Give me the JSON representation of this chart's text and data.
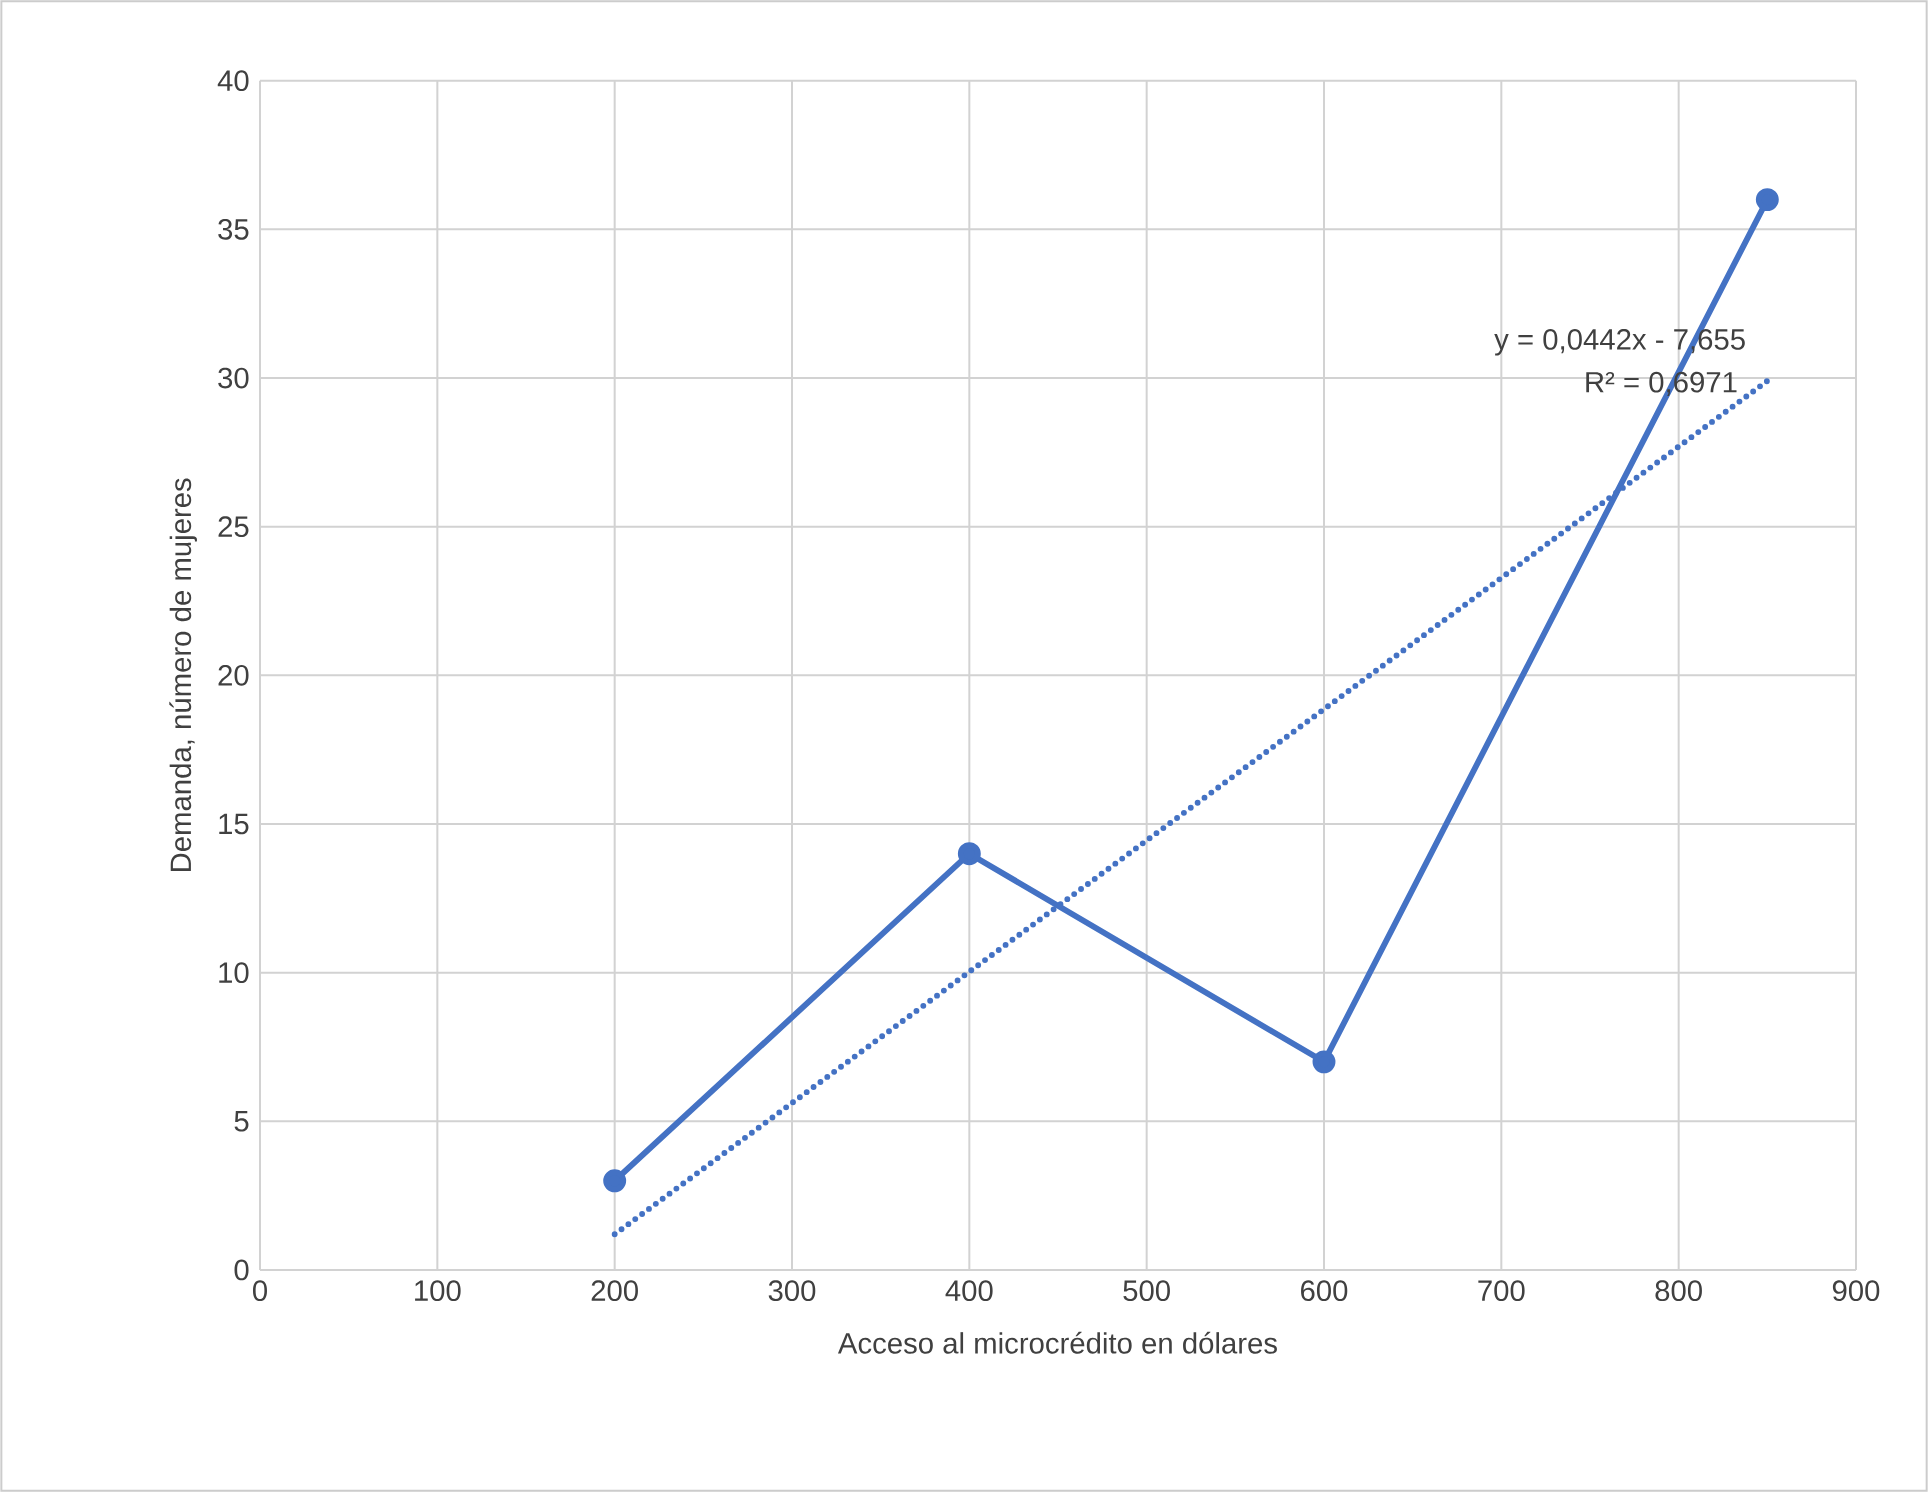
{
  "chart_data": {
    "type": "line",
    "xlabel": "Acceso al microcrédito en dólares",
    "ylabel": "Demanda, número de mujeres",
    "x": [
      200,
      400,
      600,
      850
    ],
    "series": [
      {
        "color": "#4472c4",
        "values": [
          3,
          14,
          7,
          36
        ],
        "marker": "circle",
        "line_style": "solid"
      },
      {
        "type": "line",
        "color": "#4472c4",
        "x": [
          200,
          850
        ],
        "values": [
          1.2,
          29.9
        ],
        "marker": "none",
        "line_style": "dotted"
      }
    ],
    "annotations": [
      "y = 0,0442x - 7,655",
      "R² = 0,6971"
    ],
    "xlim": [
      0,
      900
    ],
    "xticks": [
      0,
      100,
      200,
      300,
      400,
      500,
      600,
      700,
      800,
      900
    ],
    "ylim": [
      0,
      40
    ],
    "yticks": [
      0,
      5,
      10,
      15,
      20,
      25,
      30,
      35,
      40
    ],
    "grid": true
  }
}
